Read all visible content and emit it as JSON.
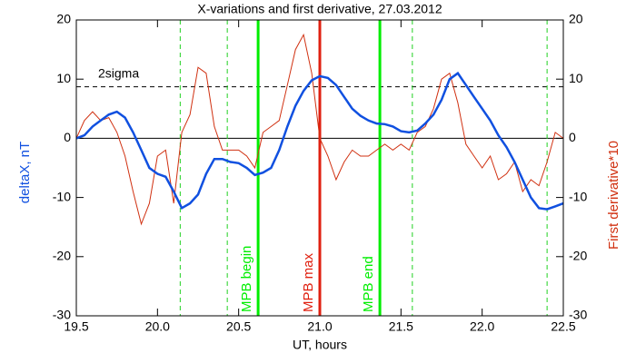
{
  "chart_data": {
    "type": "line",
    "title": "X-variations and first derivative, 27.03.2012",
    "x_label": "UT, hours",
    "y_label": "deltaX, nT",
    "y2_label": "First derivative*10",
    "xlim": [
      19.5,
      22.5
    ],
    "xticks": [
      19.5,
      {
        "value": 20,
        "label": "20.0"
      },
      20.5,
      {
        "value": 21,
        "label": "21.0"
      },
      21.5,
      {
        "value": 22,
        "label": "22.0"
      },
      22.5
    ],
    "ylim": [
      -30,
      20
    ],
    "yticks": [
      -30,
      -20,
      -10,
      0,
      10,
      20
    ],
    "y2lim": [
      -30,
      20
    ],
    "y2ticks": [
      -30,
      -20,
      -10,
      0,
      10,
      20
    ],
    "x": [
      19.5,
      19.55,
      19.6,
      19.65,
      19.7,
      19.75,
      19.8,
      19.85,
      19.9,
      19.95,
      20.0,
      20.05,
      20.1,
      20.15,
      20.2,
      20.25,
      20.3,
      20.35,
      20.4,
      20.45,
      20.5,
      20.55,
      20.6,
      20.65,
      20.7,
      20.75,
      20.8,
      20.85,
      20.9,
      20.95,
      21.0,
      21.05,
      21.1,
      21.15,
      21.2,
      21.25,
      21.3,
      21.35,
      21.4,
      21.45,
      21.5,
      21.55,
      21.6,
      21.65,
      21.7,
      21.75,
      21.8,
      21.85,
      21.9,
      21.95,
      22.0,
      22.05,
      22.1,
      22.15,
      22.2,
      22.25,
      22.3,
      22.35,
      22.4,
      22.45,
      22.5
    ],
    "series": [
      {
        "name": "deltaX, nT",
        "color": "#1050e0",
        "axis": "y",
        "values": [
          0,
          0.5,
          2,
          3,
          4,
          4.5,
          3.5,
          1,
          -2,
          -5,
          -6,
          -6.5,
          -9,
          -11.8,
          -11,
          -9.5,
          -6,
          -3.5,
          -3.5,
          -4,
          -4.2,
          -5,
          -6.2,
          -5.8,
          -5,
          -2,
          2,
          5.5,
          8,
          9.8,
          10.5,
          10.2,
          9,
          7,
          5,
          3.8,
          3,
          2.5,
          2.4,
          2,
          1.2,
          1,
          1.3,
          2.5,
          4,
          6.5,
          10,
          11,
          9,
          7,
          5,
          3,
          0.5,
          -1.5,
          -4,
          -7,
          -10,
          -11.8,
          -12,
          -11.5,
          -11
        ]
      },
      {
        "name": "First derivative*10",
        "color": "#d03010",
        "axis": "y2",
        "values": [
          0,
          3,
          4.5,
          3,
          3.5,
          1,
          -3,
          -9,
          -14.5,
          -11,
          -3,
          -2,
          -11,
          1,
          4,
          12,
          11,
          2,
          -2,
          -2,
          -2,
          -3,
          -5,
          1,
          2,
          3,
          9,
          15,
          17.5,
          11,
          0,
          -3,
          -7,
          -4,
          -2,
          -3,
          -3,
          -2,
          -1,
          -2,
          -1,
          -2,
          1,
          2,
          5,
          10,
          11,
          6,
          -1,
          -3,
          -5,
          -3,
          -7,
          -6,
          -4,
          -9,
          -7,
          -8,
          -4,
          1,
          0
        ]
      }
    ],
    "reference_lines": [
      {
        "axis": "y",
        "value": 0,
        "color": "#000000",
        "style": "solid"
      },
      {
        "axis": "y",
        "value": 8.7,
        "color": "#000000",
        "style": "dashed",
        "label": "2sigma"
      },
      {
        "axis": "x",
        "value": 20.14,
        "color": "#20d020",
        "style": "dashed"
      },
      {
        "axis": "x",
        "value": 20.43,
        "color": "#20d020",
        "style": "dashed"
      },
      {
        "axis": "x",
        "value": 20.62,
        "color": "#00ee00",
        "style": "solid",
        "label": "MPB begin"
      },
      {
        "axis": "x",
        "value": 21.0,
        "color": "#e02010",
        "style": "solid",
        "label": "MPB max"
      },
      {
        "axis": "x",
        "value": 21.37,
        "color": "#00ee00",
        "style": "solid",
        "label": "MPB end"
      },
      {
        "axis": "x",
        "value": 21.57,
        "color": "#20d020",
        "style": "dashed"
      },
      {
        "axis": "x",
        "value": 22.4,
        "color": "#20d020",
        "style": "dashed"
      }
    ]
  }
}
